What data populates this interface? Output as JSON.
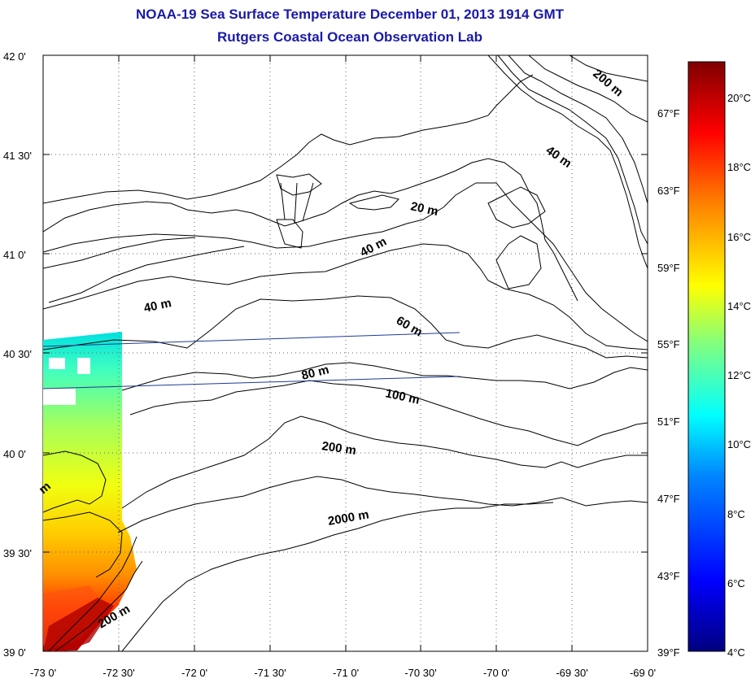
{
  "title": "NOAA-19 Sea Surface Temperature December 01, 2013 1914 GMT",
  "subtitle": "Rutgers Coastal Ocean Observation Lab",
  "map": {
    "lat_labels": [
      "42 0'",
      "41 30'",
      "41 0'",
      "40 30'",
      "40 0'",
      "39 30'",
      "39 0'"
    ],
    "lon_labels": [
      "-73 0'",
      "-72 30'",
      "-72 0'",
      "-71 30'",
      "-71 0'",
      "-70 30'",
      "-70 0'",
      "-69 30'",
      "-69 0'"
    ],
    "lat_range": [
      39.0,
      42.0
    ],
    "lon_range": [
      -73.0,
      -69.0
    ],
    "grid": "dotted",
    "contour_labels": [
      {
        "text": "20 m"
      },
      {
        "text": "40 m"
      },
      {
        "text": "40 m"
      },
      {
        "text": "60 m"
      },
      {
        "text": "80 m"
      },
      {
        "text": "100 m"
      },
      {
        "text": "200 m"
      },
      {
        "text": "2000 m"
      },
      {
        "text": "40 m"
      },
      {
        "text": "200 m"
      },
      {
        "text": "200 m"
      },
      {
        "text": "m"
      }
    ]
  },
  "colorbar": {
    "celsius_labels": [
      "20°C",
      "18°C",
      "16°C",
      "14°C",
      "12°C",
      "10°C",
      "8°C",
      "6°C",
      "4°C"
    ],
    "fahrenheit_labels": [
      "67°F",
      "63°F",
      "59°F",
      "55°F",
      "51°F",
      "47°F",
      "43°F",
      "39°F"
    ],
    "range_celsius": [
      4,
      21
    ],
    "colors": [
      "#00008f",
      "#0000ff",
      "#0080ff",
      "#00ffff",
      "#80ff80",
      "#ffff00",
      "#ff8000",
      "#ff0000",
      "#800000"
    ]
  },
  "colors": {
    "title": "#1a1aa8",
    "coastline": "#000000",
    "track_line": "#1f3a93"
  }
}
